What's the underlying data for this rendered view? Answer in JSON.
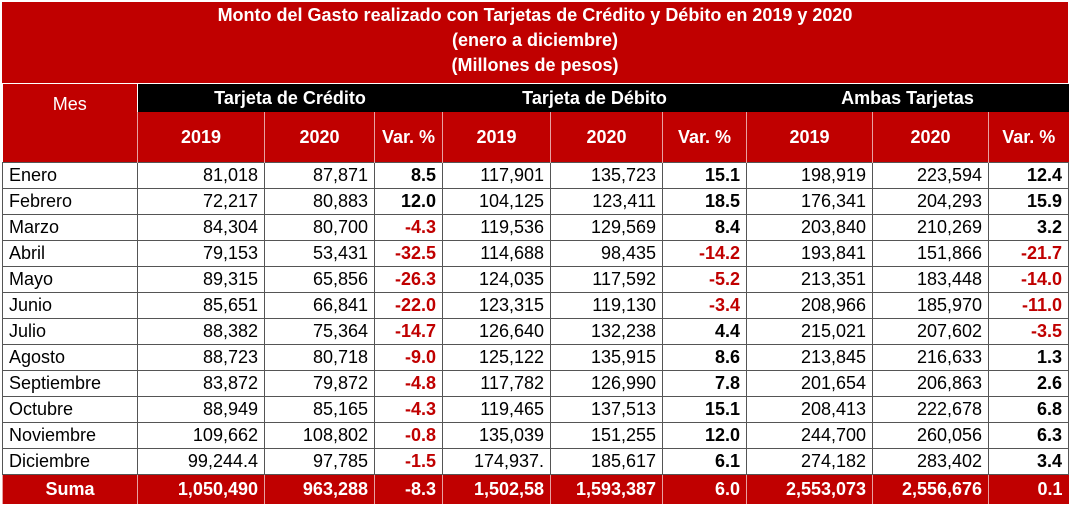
{
  "title": [
    "Monto del Gasto realizado con Tarjetas de Crédito y Débito en 2019 y 2020",
    "(enero a diciembre)",
    "(Millones de pesos)"
  ],
  "table": {
    "header": {
      "month": "Mes",
      "groups": [
        "Tarjeta de Crédito",
        "Tarjeta de Débito",
        "Ambas Tarjetas"
      ],
      "columns": [
        "2019",
        "2020",
        "Var. %",
        "2019",
        "2020",
        "Var. %",
        "2019",
        "2020",
        "Var. %"
      ]
    },
    "rows": [
      [
        "Enero",
        "81,018",
        "87,871",
        "8.5",
        "117,901",
        "135,723",
        "15.1",
        "198,919",
        "223,594",
        "12.4"
      ],
      [
        "Febrero",
        "72,217",
        "80,883",
        "12.0",
        "104,125",
        "123,411",
        "18.5",
        "176,341",
        "204,293",
        "15.9"
      ],
      [
        "Marzo",
        "84,304",
        "80,700",
        "-4.3",
        "119,536",
        "129,569",
        "8.4",
        "203,840",
        "210,269",
        "3.2"
      ],
      [
        "Abril",
        "79,153",
        "53,431",
        "-32.5",
        "114,688",
        "98,435",
        "-14.2",
        "193,841",
        "151,866",
        "-21.7"
      ],
      [
        "Mayo",
        "89,315",
        "65,856",
        "-26.3",
        "124,035",
        "117,592",
        "-5.2",
        "213,351",
        "183,448",
        "-14.0"
      ],
      [
        "Junio",
        "85,651",
        "66,841",
        "-22.0",
        "123,315",
        "119,130",
        "-3.4",
        "208,966",
        "185,970",
        "-11.0"
      ],
      [
        "Julio",
        "88,382",
        "75,364",
        "-14.7",
        "126,640",
        "132,238",
        "4.4",
        "215,021",
        "207,602",
        "-3.5"
      ],
      [
        "Agosto",
        "88,723",
        "80,718",
        "-9.0",
        "125,122",
        "135,915",
        "8.6",
        "213,845",
        "216,633",
        "1.3"
      ],
      [
        "Septiembre",
        "83,872",
        "79,872",
        "-4.8",
        "117,782",
        "126,990",
        "7.8",
        "201,654",
        "206,863",
        "2.6"
      ],
      [
        "Octubre",
        "88,949",
        "85,165",
        "-4.3",
        "119,465",
        "137,513",
        "15.1",
        "208,413",
        "222,678",
        "6.8"
      ],
      [
        "Noviembre",
        "109,662",
        "108,802",
        "-0.8",
        "135,039",
        "151,255",
        "12.0",
        "244,700",
        "260,056",
        "6.3"
      ],
      [
        "Diciembre",
        "99,244.4",
        "97,785",
        "-1.5",
        "174,937.",
        "185,617",
        "6.1",
        "274,182",
        "283,402",
        "3.4"
      ]
    ],
    "total": [
      "Suma",
      "1,050,490",
      "963,288",
      "-8.3",
      "1,502,58",
      "1,593,387",
      "6.0",
      "2,553,073",
      "2,556,676",
      "0.1"
    ]
  }
}
